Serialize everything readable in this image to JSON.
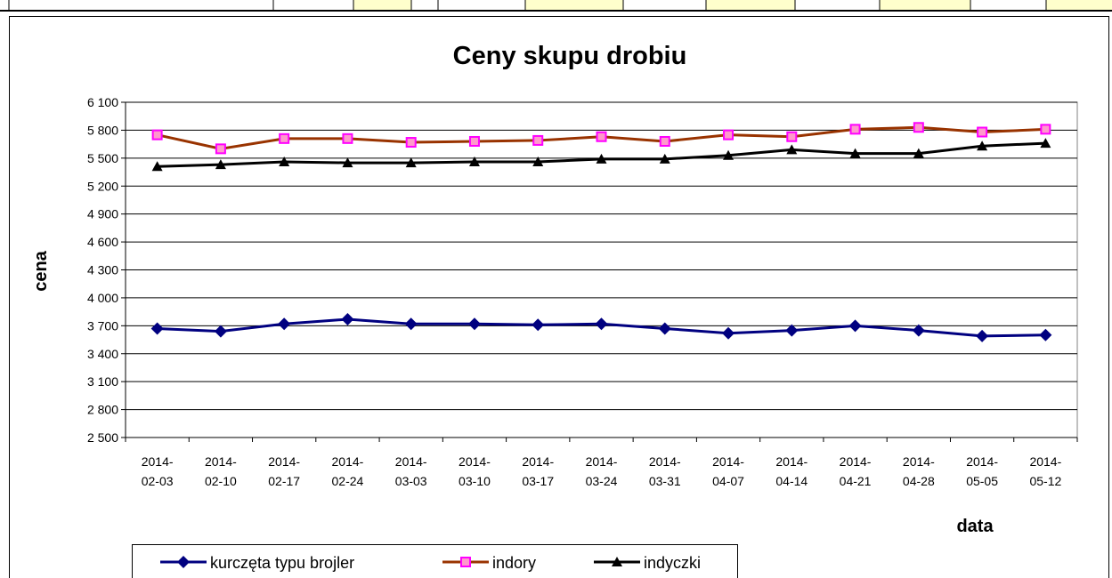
{
  "chart_data": {
    "type": "line",
    "title": "Ceny skupu drobiu",
    "x_label": "data",
    "y_label": "cena",
    "categories": [
      "2014-02-03",
      "2014-02-10",
      "2014-02-17",
      "2014-02-24",
      "2014-03-03",
      "2014-03-10",
      "2014-03-17",
      "2014-03-24",
      "2014-03-31",
      "2014-04-07",
      "2014-04-14",
      "2014-04-21",
      "2014-04-28",
      "2014-05-05",
      "2014-05-12"
    ],
    "series": [
      {
        "name": "kurczęta typu brojler",
        "color": "#000080",
        "marker": "diamond",
        "values": [
          3670,
          3640,
          3720,
          3770,
          3720,
          3720,
          3710,
          3720,
          3670,
          3620,
          3650,
          3700,
          3650,
          3590,
          3600
        ]
      },
      {
        "name": "indory",
        "color": "#993300",
        "marker": "square",
        "values": [
          5750,
          5600,
          5710,
          5710,
          5670,
          5680,
          5690,
          5730,
          5680,
          5750,
          5730,
          5810,
          5830,
          5780,
          5810
        ]
      },
      {
        "name": "indyczki",
        "color": "#000000",
        "marker": "triangle",
        "values": [
          5410,
          5430,
          5460,
          5450,
          5450,
          5460,
          5460,
          5490,
          5490,
          5530,
          5590,
          5550,
          5550,
          5630,
          5660
        ]
      }
    ],
    "ylim": [
      2500,
      6100
    ],
    "yticks": [
      {
        "value": 2500,
        "label": "2 500"
      },
      {
        "value": 2800,
        "label": "2 800"
      },
      {
        "value": 3100,
        "label": "3 100"
      },
      {
        "value": 3400,
        "label": "3 400"
      },
      {
        "value": 3700,
        "label": "3 700"
      },
      {
        "value": 4000,
        "label": "4 000"
      },
      {
        "value": 4300,
        "label": "4 300"
      },
      {
        "value": 4600,
        "label": "4 600"
      },
      {
        "value": 4900,
        "label": "4 900"
      },
      {
        "value": 5200,
        "label": "5 200"
      },
      {
        "value": 5500,
        "label": "5 500"
      },
      {
        "value": 5800,
        "label": "5 800"
      },
      {
        "value": 6100,
        "label": "6 100"
      }
    ],
    "grid": true
  }
}
